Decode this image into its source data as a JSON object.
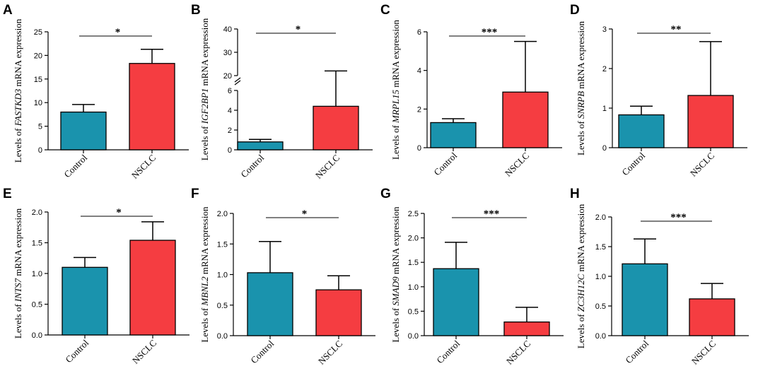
{
  "figure": {
    "colors": {
      "control": "#1a93ad",
      "nsclc": "#f53d41",
      "axis": "#000000"
    }
  },
  "chart_data": [
    {
      "panel": "A",
      "type": "bar",
      "ylabel_prefix": "Levels of ",
      "ylabel_gene": "FASTKD3",
      "ylabel_suffix": " mRNA expression",
      "categories": [
        "Control",
        "NSCLC"
      ],
      "values": [
        8.0,
        18.3
      ],
      "errors": [
        9.6,
        21.3
      ],
      "ylim": [
        0,
        25
      ],
      "yticks": [
        "0",
        "5",
        "10",
        "15",
        "20",
        "25"
      ],
      "significance": "*"
    },
    {
      "panel": "B",
      "type": "bar",
      "broken_axis": true,
      "ylabel_prefix": "Levels of ",
      "ylabel_gene": "IGF2BP1",
      "ylabel_suffix": " mRNA expression",
      "categories": [
        "Control",
        "NSCLC"
      ],
      "values": [
        0.8,
        4.4
      ],
      "errors": [
        1.05,
        22.0
      ],
      "lower_range": [
        0,
        6
      ],
      "upper_range": [
        20,
        40
      ],
      "yticks_lower": [
        "0",
        "2",
        "4",
        "6"
      ],
      "yticks_upper": [
        "20",
        "30",
        "40"
      ],
      "significance": "*"
    },
    {
      "panel": "C",
      "type": "bar",
      "ylabel_prefix": "Levels of ",
      "ylabel_gene": "MRPL15",
      "ylabel_suffix": " mRNA expression",
      "categories": [
        "Control",
        "NSCLC"
      ],
      "values": [
        1.3,
        2.88
      ],
      "errors": [
        1.5,
        5.5
      ],
      "ylim": [
        0,
        6
      ],
      "yticks": [
        "0",
        "2",
        "4",
        "6"
      ],
      "significance": "***"
    },
    {
      "panel": "D",
      "type": "bar",
      "ylabel_prefix": "Levels of ",
      "ylabel_gene": "SNRPB",
      "ylabel_suffix": " mRNA expression",
      "categories": [
        "Control",
        "NSCLC"
      ],
      "values": [
        0.83,
        1.32
      ],
      "errors": [
        1.05,
        2.68
      ],
      "ylim": [
        0,
        3
      ],
      "yticks": [
        "0",
        "1",
        "2",
        "3"
      ],
      "significance": "**"
    },
    {
      "panel": "E",
      "type": "bar",
      "ylabel_prefix": "Levels of ",
      "ylabel_gene": "INTS7",
      "ylabel_suffix": " mRNA expression",
      "categories": [
        "Control",
        "NSCLC"
      ],
      "values": [
        1.1,
        1.54
      ],
      "errors": [
        1.26,
        1.84
      ],
      "ylim": [
        0,
        2.0
      ],
      "yticks": [
        "0.0",
        "0.5",
        "1.0",
        "1.5",
        "2.0"
      ],
      "significance": "*"
    },
    {
      "panel": "F",
      "type": "bar",
      "ylabel_prefix": "Levels of ",
      "ylabel_gene": "MBNL2",
      "ylabel_suffix": " mRNA expression",
      "categories": [
        "Control",
        "NSCLC"
      ],
      "values": [
        1.03,
        0.75
      ],
      "errors": [
        1.54,
        0.98
      ],
      "ylim": [
        0,
        2.0
      ],
      "yticks": [
        "0.0",
        "0.5",
        "1.0",
        "1.5",
        "2.0"
      ],
      "significance": "*"
    },
    {
      "panel": "G",
      "type": "bar",
      "ylabel_prefix": "Levels of ",
      "ylabel_gene": "SMAD9",
      "ylabel_suffix": " mRNA expression",
      "categories": [
        "Control",
        "NSCLC"
      ],
      "values": [
        1.37,
        0.28
      ],
      "errors": [
        1.91,
        0.58
      ],
      "ylim": [
        0,
        2.5
      ],
      "yticks": [
        "0.0",
        "0.5",
        "1.0",
        "1.5",
        "2.0",
        "2.5"
      ],
      "significance": "***"
    },
    {
      "panel": "H",
      "type": "bar",
      "ylabel_prefix": "Levels of ",
      "ylabel_gene": "ZC3H12C",
      "ylabel_suffix": " mRNA expression",
      "categories": [
        "Control",
        "NSCLC"
      ],
      "values": [
        1.21,
        0.62
      ],
      "errors": [
        1.63,
        0.88
      ],
      "ylim": [
        0,
        2.0
      ],
      "yticks": [
        "0.0",
        "0.5",
        "1.0",
        "1.5",
        "2.0"
      ],
      "significance": "***"
    }
  ]
}
